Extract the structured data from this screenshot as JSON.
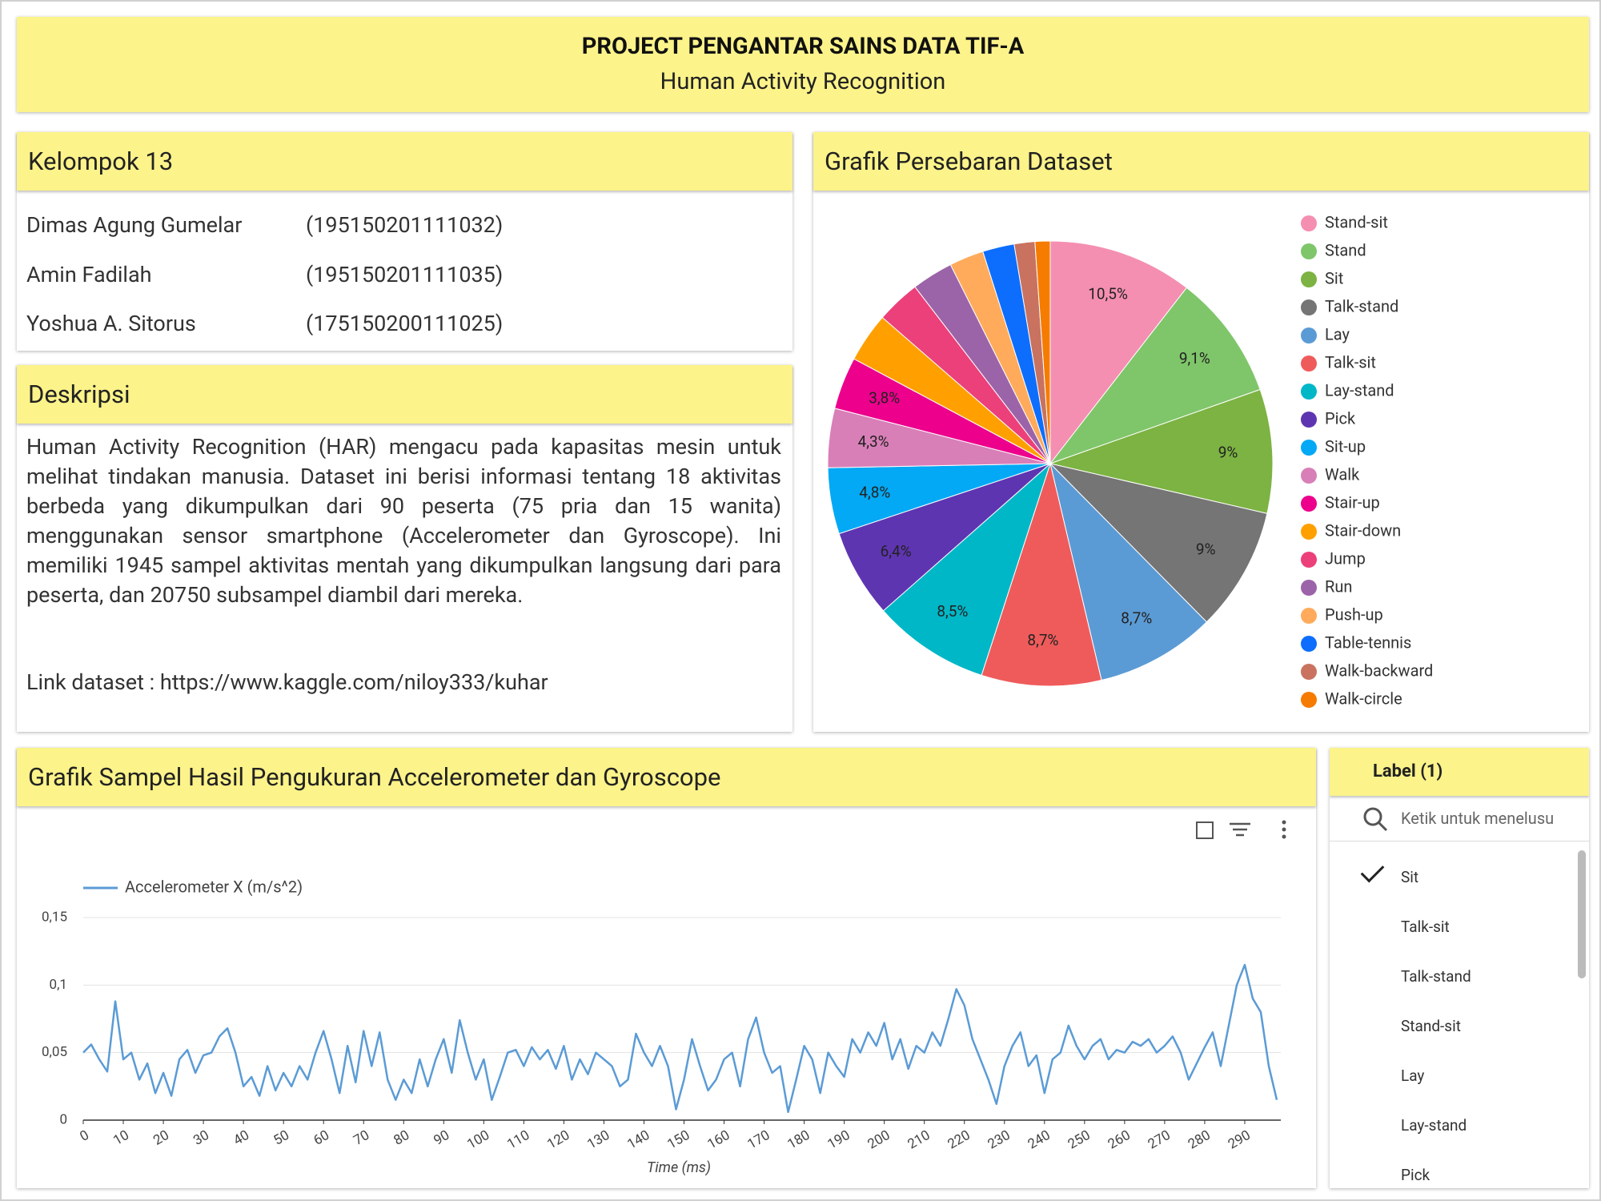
{
  "header": {
    "title": "PROJECT PENGANTAR SAINS DATA TIF-A",
    "subtitle": "Human Activity Recognition"
  },
  "group": {
    "title": "Kelompok 13",
    "members": [
      {
        "name": "Dimas Agung Gumelar",
        "nim": "(195150201111032)"
      },
      {
        "name": "Amin Fadilah",
        "nim": "(195150201111035)"
      },
      {
        "name": "Yoshua A. Sitorus",
        "nim": "(175150200111025)"
      }
    ]
  },
  "description": {
    "title": "Deskripsi",
    "text": "Human Activity Recognition (HAR) mengacu pada kapasitas mesin untuk melihat tindakan manusia. Dataset ini berisi informasi tentang 18 aktivitas berbeda yang dikumpulkan dari 90 peserta (75 pria dan 15 wanita) menggunakan sensor smartphone (Accelerometer dan Gyroscope). Ini memiliki 1945 sampel aktivitas mentah yang dikumpulkan langsung dari para peserta, dan 20750 subsampel diambil dari mereka.",
    "link": "Link dataset : https://www.kaggle.com/niloy333/kuhar"
  },
  "filter": {
    "title": "Label (1)",
    "placeholder": "Ketik untuk menelusu",
    "items": [
      {
        "label": "Sit",
        "checked": true
      },
      {
        "label": "Talk-sit",
        "checked": false
      },
      {
        "label": "Talk-stand",
        "checked": false
      },
      {
        "label": "Stand-sit",
        "checked": false
      },
      {
        "label": "Lay",
        "checked": false
      },
      {
        "label": "Lay-stand",
        "checked": false
      },
      {
        "label": "Pick",
        "checked": false
      }
    ]
  },
  "chart_data": [
    {
      "type": "pie",
      "title": "Grafik Persebaran Dataset",
      "legend": "right",
      "categories": [
        "Stand-sit",
        "Stand",
        "Sit",
        "Talk-stand",
        "Lay",
        "Talk-sit",
        "Lay-stand",
        "Pick",
        "Sit-up",
        "Walk",
        "Stair-up",
        "Stair-down",
        "Jump",
        "Run",
        "Push-up",
        "Table-tennis",
        "Walk-backward",
        "Walk-circle"
      ],
      "values": [
        10.5,
        9.1,
        9,
        9,
        8.7,
        8.7,
        8.5,
        6.4,
        4.8,
        4.3,
        3.8,
        3.6,
        3.2,
        3.0,
        2.5,
        2.3,
        1.5,
        1.1
      ],
      "value_labels": [
        "10,5%",
        "9,1%",
        "9%",
        "9%",
        "8,7%",
        "8,7%",
        "8,5%",
        "6,4%",
        "4,8%",
        "4,3%",
        "3,8%",
        null,
        null,
        null,
        null,
        null,
        null,
        null
      ],
      "colors": [
        "#f48fb1",
        "#7fc66a",
        "#7cb342",
        "#757575",
        "#5b9bd5",
        "#ef5b5b",
        "#00b7c7",
        "#5e35b1",
        "#03a9f4",
        "#d87fb8",
        "#ec008c",
        "#ffa000",
        "#ec407a",
        "#9c64a8",
        "#ffab5b",
        "#0d6efd",
        "#c97260",
        "#f57c00"
      ]
    },
    {
      "type": "line",
      "title": "Grafik Sampel Hasil Pengukuran Accelerometer dan Gyroscope",
      "xlabel": "Time (ms)",
      "grid": true,
      "legend": "top-left",
      "x": [
        0,
        2,
        4,
        6,
        8,
        10,
        12,
        14,
        16,
        18,
        20,
        22,
        24,
        26,
        28,
        30,
        32,
        34,
        36,
        38,
        40,
        42,
        44,
        46,
        48,
        50,
        52,
        54,
        56,
        58,
        60,
        62,
        64,
        66,
        68,
        70,
        72,
        74,
        76,
        78,
        80,
        82,
        84,
        86,
        88,
        90,
        92,
        94,
        96,
        98,
        100,
        102,
        104,
        106,
        108,
        110,
        112,
        114,
        116,
        118,
        120,
        122,
        124,
        126,
        128,
        130,
        132,
        134,
        136,
        138,
        140,
        142,
        144,
        146,
        148,
        150,
        152,
        154,
        156,
        158,
        160,
        162,
        164,
        166,
        168,
        170,
        172,
        174,
        176,
        178,
        180,
        182,
        184,
        186,
        188,
        190,
        192,
        194,
        196,
        198,
        200,
        202,
        204,
        206,
        208,
        210,
        212,
        214,
        216,
        218,
        220,
        222,
        224,
        226,
        228,
        230,
        232,
        234,
        236,
        238,
        240,
        242,
        244,
        246,
        248,
        250,
        252,
        254,
        256,
        258,
        260,
        262,
        264,
        266,
        268,
        270,
        272,
        274,
        276,
        278,
        280,
        282,
        284,
        286,
        288,
        290,
        292,
        294,
        296,
        298
      ],
      "series": [
        {
          "name": "Accelerometer X (m/s^2)",
          "color": "#5b9bd5",
          "values": [
            0.05,
            0.056,
            0.045,
            0.036,
            0.088,
            0.045,
            0.05,
            0.03,
            0.042,
            0.02,
            0.035,
            0.018,
            0.045,
            0.052,
            0.035,
            0.048,
            0.05,
            0.062,
            0.068,
            0.05,
            0.025,
            0.032,
            0.018,
            0.04,
            0.022,
            0.035,
            0.025,
            0.04,
            0.03,
            0.05,
            0.066,
            0.045,
            0.02,
            0.055,
            0.028,
            0.066,
            0.04,
            0.065,
            0.03,
            0.015,
            0.03,
            0.02,
            0.045,
            0.025,
            0.045,
            0.06,
            0.035,
            0.074,
            0.05,
            0.03,
            0.045,
            0.015,
            0.032,
            0.05,
            0.052,
            0.04,
            0.054,
            0.045,
            0.052,
            0.038,
            0.055,
            0.03,
            0.045,
            0.034,
            0.05,
            0.045,
            0.04,
            0.025,
            0.03,
            0.064,
            0.05,
            0.04,
            0.055,
            0.04,
            0.008,
            0.03,
            0.06,
            0.04,
            0.022,
            0.03,
            0.045,
            0.05,
            0.025,
            0.06,
            0.076,
            0.05,
            0.035,
            0.04,
            0.006,
            0.03,
            0.055,
            0.045,
            0.02,
            0.05,
            0.04,
            0.032,
            0.06,
            0.05,
            0.065,
            0.055,
            0.072,
            0.045,
            0.06,
            0.038,
            0.055,
            0.05,
            0.065,
            0.055,
            0.075,
            0.097,
            0.085,
            0.06,
            0.045,
            0.03,
            0.012,
            0.04,
            0.055,
            0.065,
            0.04,
            0.048,
            0.02,
            0.045,
            0.05,
            0.07,
            0.055,
            0.045,
            0.055,
            0.06,
            0.045,
            0.052,
            0.05,
            0.058,
            0.055,
            0.06,
            0.05,
            0.055,
            0.062,
            0.05,
            0.03,
            0.042,
            0.054,
            0.065,
            0.04,
            0.07,
            0.1,
            0.115,
            0.09,
            0.08,
            0.04,
            0.015
          ]
        }
      ],
      "xlim": [
        0,
        299
      ],
      "xticks": [
        0,
        10,
        20,
        30,
        40,
        50,
        60,
        70,
        80,
        90,
        100,
        110,
        120,
        130,
        140,
        150,
        160,
        170,
        180,
        190,
        200,
        210,
        220,
        230,
        240,
        250,
        260,
        270,
        280,
        290
      ],
      "ylim": [
        0,
        0.15
      ],
      "yticks": [
        0,
        {
          "value": 0.05,
          "label": "0,05"
        },
        {
          "value": 0.1,
          "label": "0,1"
        },
        {
          "value": 0.15,
          "label": "0,15"
        }
      ]
    }
  ]
}
